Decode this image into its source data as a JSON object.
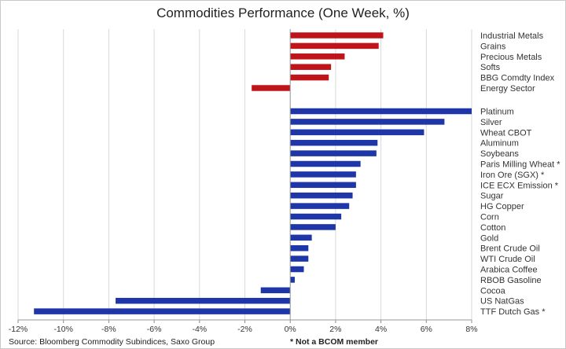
{
  "chart_data": {
    "type": "bar",
    "orientation": "horizontal",
    "title": "Commodities Performance (One Week, %)",
    "xlim": [
      -12,
      8
    ],
    "x_ticks": [
      "-12%",
      "-10%",
      "-8%",
      "-6%",
      "-4%",
      "-2%",
      "0%",
      "2%",
      "4%",
      "6%",
      "8%"
    ],
    "grid": "vertical",
    "groups": [
      {
        "color": "#c0141b",
        "categories": [
          "Industrial Metals",
          "Grains",
          "Precious Metals",
          "Softs",
          "BBG Comdty Index",
          "Energy Sector"
        ],
        "values": [
          4.1,
          3.9,
          2.4,
          1.8,
          1.7,
          -1.7
        ]
      },
      {
        "color": "#1f36a8",
        "categories": [
          "Platinum",
          "Silver",
          "Wheat CBOT",
          "Aluminum",
          "Soybeans",
          "Paris Milling Wheat *",
          "Iron Ore (SGX) *",
          "ICE ECX Emission *",
          "Sugar",
          "HG Copper",
          "Corn",
          "Cotton",
          "Gold",
          "Brent Crude Oil",
          "WTI Crude Oil",
          "Arabica Coffee",
          "RBOB Gasoline",
          "Cocoa",
          "US NatGas",
          "TTF Dutch Gas *"
        ],
        "values": [
          8.0,
          6.8,
          5.9,
          3.85,
          3.8,
          3.1,
          2.9,
          2.9,
          2.75,
          2.6,
          2.25,
          2.0,
          0.95,
          0.8,
          0.8,
          0.6,
          0.2,
          -1.3,
          -7.7,
          -11.3
        ]
      }
    ],
    "source": "Source: Bloomberg Commodity Subindices, Saxo Group",
    "note": "* Not a BCOM member"
  }
}
